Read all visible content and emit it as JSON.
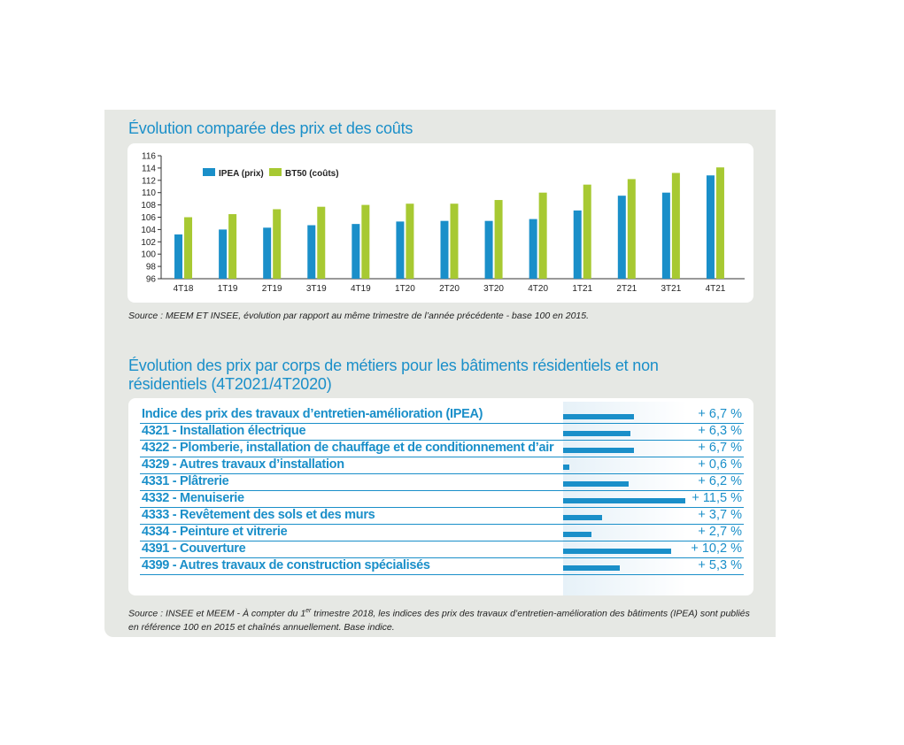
{
  "chart_data": [
    {
      "type": "bar",
      "title": "Évolution comparée des prix et des coûts",
      "categories": [
        "4T18",
        "1T19",
        "2T19",
        "3T19",
        "4T19",
        "1T20",
        "2T20",
        "3T20",
        "4T20",
        "1T21",
        "2T21",
        "3T21",
        "4T21"
      ],
      "series": [
        {
          "name": "IPEA (prix)",
          "color": "#1a8fc9",
          "values": [
            103.2,
            104.0,
            104.3,
            104.7,
            104.9,
            105.3,
            105.4,
            105.4,
            105.7,
            107.1,
            109.5,
            110.0,
            112.8
          ]
        },
        {
          "name": "BT50 (coûts)",
          "color": "#a7c932",
          "values": [
            106.0,
            106.5,
            107.3,
            107.7,
            108.0,
            108.2,
            108.2,
            108.8,
            110.0,
            111.3,
            112.2,
            113.2,
            114.1
          ]
        }
      ],
      "yticks": [
        "116",
        "114",
        "112",
        "110",
        "108",
        "106",
        "104",
        "102",
        "100",
        "98",
        "96"
      ],
      "ylim": [
        96,
        116
      ],
      "legend": "top-left",
      "source": "Source : MEEM ET INSEE, évolution par rapport au même trimestre de l’année précédente - base 100 en 2015."
    },
    {
      "type": "bar",
      "title": "Évolution des prix par corps de métiers pour les bâtiments résidentiels et non résidentiels (4T2021/4T2020)",
      "rows": [
        {
          "label": "Indice des prix des travaux d’entretien-amélioration (IPEA)",
          "value": 6.7,
          "display": "+ 6,7 %"
        },
        {
          "label": "4321 - Installation électrique",
          "value": 6.3,
          "display": "+ 6,3 %"
        },
        {
          "label": "4322 - Plomberie, installation de chauffage et de conditionnement d’air",
          "value": 6.7,
          "display": "+ 6,7 %"
        },
        {
          "label": "4329 - Autres travaux d’installation",
          "value": 0.6,
          "display": "+ 0,6 %"
        },
        {
          "label": "4331 - Plâtrerie",
          "value": 6.2,
          "display": "+ 6,2 %"
        },
        {
          "label": "4332 - Menuiserie",
          "value": 11.5,
          "display": "+ 11,5 %"
        },
        {
          "label": "4333 - Revêtement des sols et des murs",
          "value": 3.7,
          "display": "+ 3,7 %"
        },
        {
          "label": "4334 - Peinture et vitrerie",
          "value": 2.7,
          "display": "+ 2,7 %"
        },
        {
          "label": "4391 - Couverture",
          "value": 10.2,
          "display": "+ 10,2 %"
        },
        {
          "label": "4399 - Autres travaux de construction spécialisés",
          "value": 5.3,
          "display": "+ 5,3 %"
        }
      ],
      "max_value": 11.5,
      "source_part1": "Source : INSEE et MEEM - À compter du 1",
      "source_sup": "er",
      "source_part2": " trimestre 2018, les indices des prix des travaux d’entretien-amélioration des bâtiments (IPEA) sont publiés en référence 100 en 2015 et chaînés annuellement. Base indice."
    }
  ]
}
